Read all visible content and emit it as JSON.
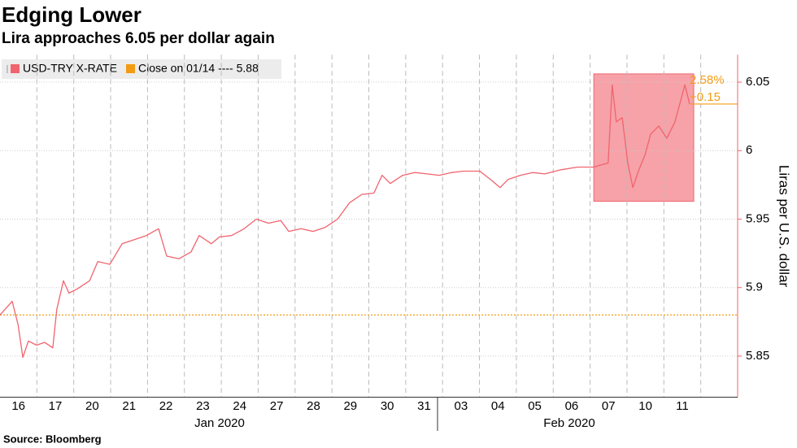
{
  "chart_data": {
    "type": "line",
    "title": "Edging Lower",
    "subtitle": "Lira approaches 6.05 per dollar again",
    "y_axis_label": "Liras per U.S. dollar",
    "source": "Source: Bloomberg",
    "x_group_labels": [
      "Jan 2020",
      "Feb 2020"
    ],
    "xlim": [
      0,
      20
    ],
    "xticks": [
      {
        "value": 0.5,
        "label": "16"
      },
      {
        "value": 1.5,
        "label": "17"
      },
      {
        "value": 2.5,
        "label": "20"
      },
      {
        "value": 3.5,
        "label": "21"
      },
      {
        "value": 4.5,
        "label": "22"
      },
      {
        "value": 5.5,
        "label": "23"
      },
      {
        "value": 6.5,
        "label": "24"
      },
      {
        "value": 7.5,
        "label": "27"
      },
      {
        "value": 8.5,
        "label": "28"
      },
      {
        "value": 9.5,
        "label": "29"
      },
      {
        "value": 10.5,
        "label": "30"
      },
      {
        "value": 11.5,
        "label": "31"
      },
      {
        "value": 12.5,
        "label": "03"
      },
      {
        "value": 13.5,
        "label": "04"
      },
      {
        "value": 14.5,
        "label": "05"
      },
      {
        "value": 15.5,
        "label": "06"
      },
      {
        "value": 16.5,
        "label": "07"
      },
      {
        "value": 17.5,
        "label": "10"
      },
      {
        "value": 18.5,
        "label": "11"
      }
    ],
    "ylim": [
      5.82,
      6.07
    ],
    "yticks": [
      5.85,
      5.9,
      5.95,
      6.0,
      6.05
    ],
    "grid": true,
    "series": [
      {
        "name": "USD-TRY X-RATE",
        "color": "#f0646e",
        "x": [
          0,
          0.33,
          0.49,
          0.62,
          0.77,
          0.99,
          1.21,
          1.43,
          1.54,
          1.72,
          1.87,
          2.09,
          2.43,
          2.65,
          2.98,
          3.31,
          3.64,
          3.97,
          4.3,
          4.52,
          4.85,
          5.18,
          5.4,
          5.73,
          5.95,
          6.28,
          6.62,
          6.95,
          7.28,
          7.61,
          7.83,
          8.16,
          8.49,
          8.82,
          9.15,
          9.48,
          9.81,
          10.14,
          10.36,
          10.58,
          10.92,
          11.25,
          11.58,
          11.91,
          12.24,
          12.57,
          13.01,
          13.34,
          13.56,
          13.78,
          14.11,
          14.44,
          14.77,
          15.21,
          15.66,
          16.1,
          16.49,
          16.6,
          16.71,
          16.87,
          17.02,
          17.16,
          17.31,
          17.49,
          17.64,
          17.86,
          18.08,
          18.3,
          18.48,
          18.57,
          18.7
        ],
        "values": [
          5.88,
          5.89,
          5.873,
          5.849,
          5.861,
          5.858,
          5.86,
          5.856,
          5.884,
          5.905,
          5.896,
          5.899,
          5.905,
          5.919,
          5.917,
          5.932,
          5.935,
          5.938,
          5.943,
          5.923,
          5.921,
          5.926,
          5.938,
          5.932,
          5.937,
          5.938,
          5.943,
          5.95,
          5.947,
          5.949,
          5.941,
          5.943,
          5.941,
          5.944,
          5.95,
          5.962,
          5.968,
          5.969,
          5.982,
          5.976,
          5.982,
          5.984,
          5.983,
          5.982,
          5.984,
          5.985,
          5.985,
          5.978,
          5.973,
          5.979,
          5.982,
          5.984,
          5.983,
          5.986,
          5.988,
          5.988,
          5.991,
          6.048,
          6.021,
          6.024,
          5.991,
          5.973,
          5.985,
          5.997,
          6.012,
          6.018,
          6.009,
          6.021,
          6.039,
          6.048,
          6.034
        ]
      }
    ],
    "reference_line": {
      "label": "Close on 01/14 ---- 5.88",
      "value": 5.88,
      "color": "#f39c12"
    },
    "highlight": {
      "x": [
        16.1,
        18.81
      ],
      "y": [
        5.963,
        6.056
      ],
      "color": "#f0646e"
    },
    "last_value": 6.034,
    "change_labels": [
      "2.58%",
      "+0.15"
    ],
    "change_color": "#f39c12"
  }
}
